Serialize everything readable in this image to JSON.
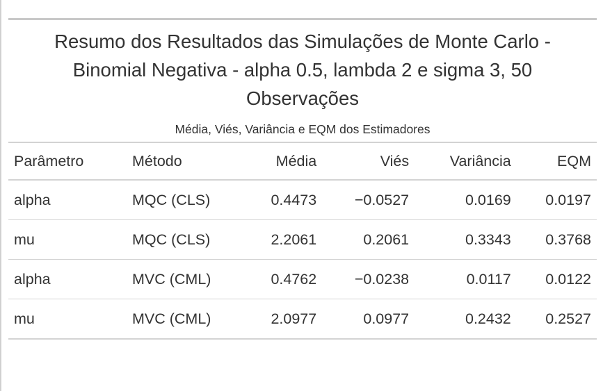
{
  "table": {
    "title": "Resumo dos Resultados das Simulações de Monte Carlo - Binomial Negativa - alpha 0.5, lambda 2 e sigma 3, 50 Observações",
    "subtitle": "Média, Viés, Variância e EQM dos Estimadores",
    "columns": [
      "Parâmetro",
      "Método",
      "Média",
      "Viés",
      "Variância",
      "EQM"
    ],
    "rows": [
      [
        "alpha",
        "MQC (CLS)",
        "0.4473",
        "−0.0527",
        "0.0169",
        "0.0197"
      ],
      [
        "mu",
        "MQC (CLS)",
        "2.2061",
        "0.2061",
        "0.3343",
        "0.3768"
      ],
      [
        "alpha",
        "MVC (CML)",
        "0.4762",
        "−0.0238",
        "0.0117",
        "0.0122"
      ],
      [
        "mu",
        "MVC (CML)",
        "2.0977",
        "0.0977",
        "0.2432",
        "0.2527"
      ]
    ]
  }
}
